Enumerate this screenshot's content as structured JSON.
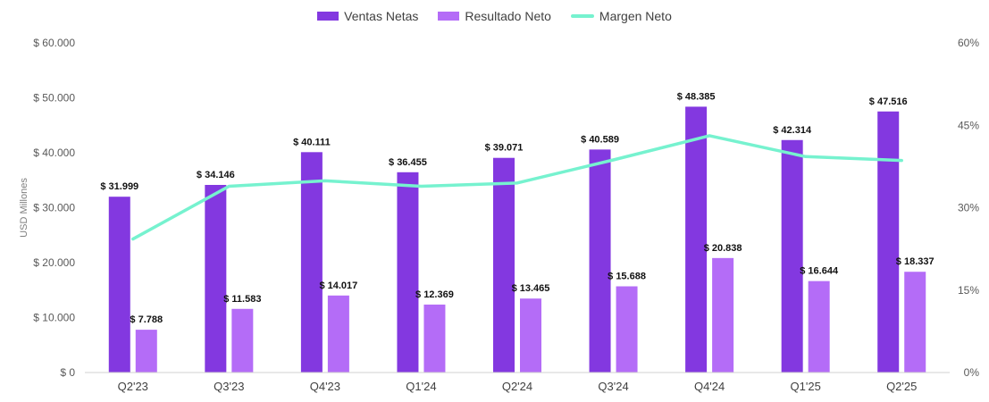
{
  "chart_data": {
    "type": "bar",
    "categories": [
      "Q2'23",
      "Q3'23",
      "Q4'23",
      "Q1'24",
      "Q2'24",
      "Q3'24",
      "Q4'24",
      "Q1'25",
      "Q2'25"
    ],
    "series": [
      {
        "name": "Ventas Netas",
        "kind": "bar",
        "axis": "left",
        "color": "#8338E0",
        "values": [
          31999,
          34146,
          40111,
          36455,
          39071,
          40589,
          48385,
          42314,
          47516
        ],
        "labels": [
          "$ 31.999",
          "$ 34.146",
          "$ 40.111",
          "$ 36.455",
          "$ 39.071",
          "$ 40.589",
          "$ 48.385",
          "$ 42.314",
          "$ 47.516"
        ]
      },
      {
        "name": "Resultado Neto",
        "kind": "bar",
        "axis": "left",
        "color": "#B46CF7",
        "values": [
          7788,
          11583,
          14017,
          12369,
          13465,
          15688,
          20838,
          16644,
          18337
        ],
        "labels": [
          "$ 7.788",
          "$ 11.583",
          "$ 14.017",
          "$ 12.369",
          "$ 13.465",
          "$ 15.688",
          "$ 20.838",
          "$ 16.644",
          "$ 18.337"
        ]
      },
      {
        "name": "Margen Neto",
        "kind": "line",
        "axis": "right",
        "color": "#76F2CF",
        "values": [
          24.3,
          33.9,
          34.9,
          33.9,
          34.5,
          38.7,
          43.1,
          39.3,
          38.6
        ]
      }
    ],
    "ylabel": "USD Millones",
    "ylim": [
      0,
      60000
    ],
    "y_ticks": [
      0,
      10000,
      20000,
      30000,
      40000,
      50000,
      60000
    ],
    "y_tick_labels": [
      "$ 0",
      "$ 10.000",
      "$ 20.000",
      "$ 30.000",
      "$ 40.000",
      "$ 50.000",
      "$ 60.000"
    ],
    "y2lim": [
      0,
      60
    ],
    "y2_ticks": [
      0,
      15,
      30,
      45,
      60
    ],
    "y2_tick_labels": [
      "0%",
      "15%",
      "30%",
      "45%",
      "60%"
    ],
    "grid": false,
    "legend": "top-center"
  }
}
